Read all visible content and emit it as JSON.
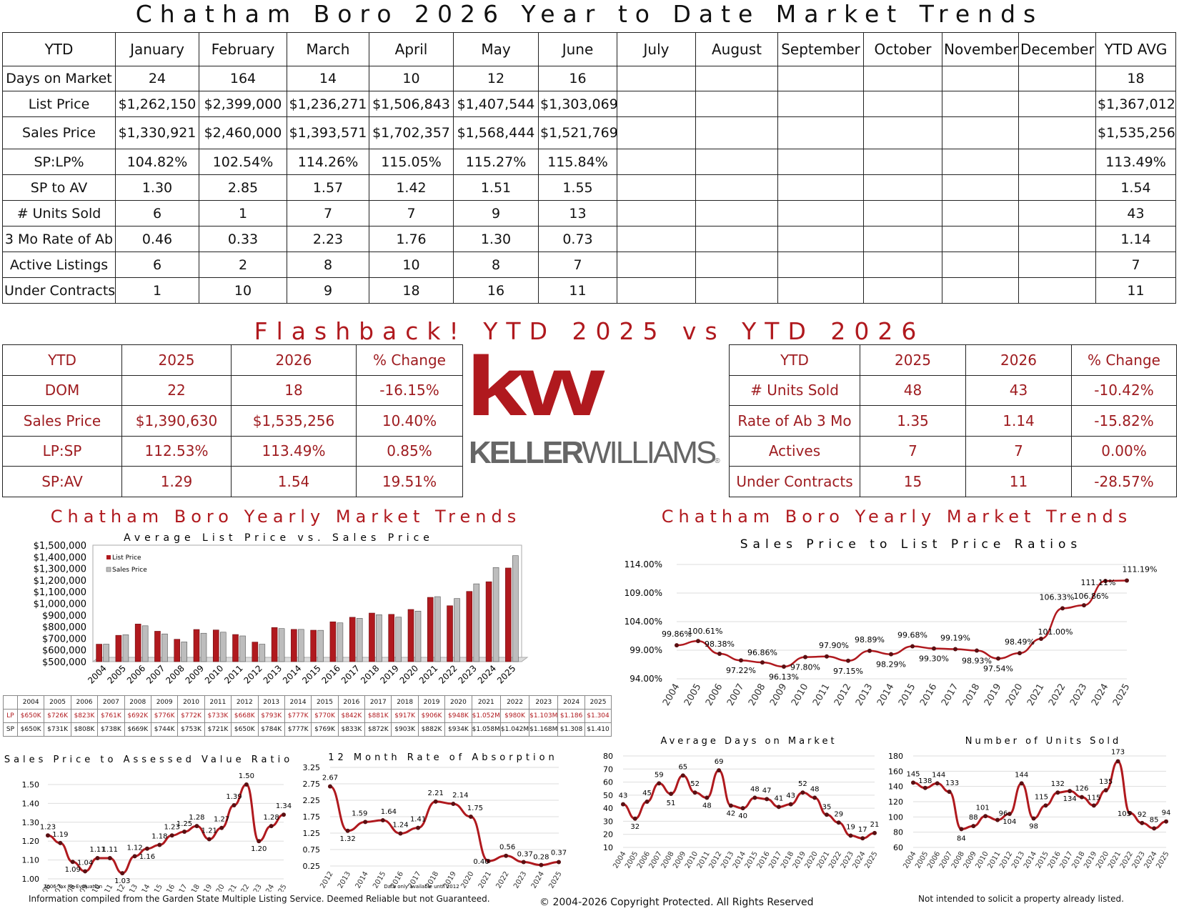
{
  "title": "Chatham Boro 2026 Year to Date Market Trends",
  "ytd_table": {
    "header": [
      "YTD",
      "January",
      "February",
      "March",
      "April",
      "May",
      "June",
      "July",
      "August",
      "September",
      "October",
      "November",
      "December",
      "YTD AVG"
    ],
    "rows": [
      {
        "label": "Days on Market",
        "values": [
          "24",
          "164",
          "14",
          "10",
          "12",
          "16",
          "",
          "",
          "",
          "",
          "",
          ""
        ],
        "avg": "18"
      },
      {
        "label": "List Price",
        "values": [
          "$1,262,150",
          "$2,399,000",
          "$1,236,271",
          "$1,506,843",
          "$1,407,544",
          "$1,303,069",
          "",
          "",
          "",
          "",
          "",
          ""
        ],
        "avg": "$1,367,012"
      },
      {
        "label": "Sales Price",
        "values": [
          "$1,330,921",
          "$2,460,000",
          "$1,393,571",
          "$1,702,357",
          "$1,568,444",
          "$1,521,769",
          "",
          "",
          "",
          "",
          "",
          ""
        ],
        "avg": "$1,535,256"
      },
      {
        "label": "SP:LP%",
        "values": [
          "104.82%",
          "102.54%",
          "114.26%",
          "115.05%",
          "115.27%",
          "115.84%",
          "",
          "",
          "",
          "",
          "",
          ""
        ],
        "avg": "113.49%"
      },
      {
        "label": "SP to AV",
        "values": [
          "1.30",
          "2.85",
          "1.57",
          "1.42",
          "1.51",
          "1.55",
          "",
          "",
          "",
          "",
          "",
          ""
        ],
        "avg": "1.54"
      },
      {
        "label": "# Units Sold",
        "values": [
          "6",
          "1",
          "7",
          "7",
          "9",
          "13",
          "",
          "",
          "",
          "",
          "",
          ""
        ],
        "avg": "43"
      },
      {
        "label": "3 Mo Rate of Ab",
        "values": [
          "0.46",
          "0.33",
          "2.23",
          "1.76",
          "1.30",
          "0.73",
          "",
          "",
          "",
          "",
          "",
          ""
        ],
        "avg": "1.14"
      },
      {
        "label": "Active Listings",
        "values": [
          "6",
          "2",
          "8",
          "10",
          "8",
          "7",
          "",
          "",
          "",
          "",
          "",
          ""
        ],
        "avg": "7"
      },
      {
        "label": "Under Contracts",
        "values": [
          "1",
          "10",
          "9",
          "18",
          "16",
          "11",
          "",
          "",
          "",
          "",
          "",
          ""
        ],
        "avg": "11"
      }
    ]
  },
  "flashback_title": "Flashback!  YTD 2025 vs YTD 2026",
  "compare_left": {
    "header": [
      "YTD",
      "2025",
      "2026",
      "% Change"
    ],
    "rows": [
      [
        "DOM",
        "22",
        "18",
        "-16.15%"
      ],
      [
        "Sales Price",
        "$1,390,630",
        "$1,535,256",
        "10.40%"
      ],
      [
        "LP:SP",
        "112.53%",
        "113.49%",
        "0.85%"
      ],
      [
        "SP:AV",
        "1.29",
        "1.54",
        "19.51%"
      ]
    ]
  },
  "compare_right": {
    "header": [
      "YTD",
      "2025",
      "2026",
      "% Change"
    ],
    "rows": [
      [
        "# Units Sold",
        "48",
        "43",
        "-10.42%"
      ],
      [
        "Rate of Ab 3 Mo",
        "1.35",
        "1.14",
        "-15.82%"
      ],
      [
        "Actives",
        "7",
        "7",
        "0.00%"
      ],
      [
        "Under Contracts",
        "15",
        "11",
        "-28.57%"
      ]
    ]
  },
  "logo": {
    "mark": "kw",
    "wordmark_bold": "KELLER",
    "wordmark_light": "WILLIAMS",
    "registered": "®"
  },
  "section_title_left": "Chatham Boro Yearly Market Trends",
  "section_title_right": "Chatham Boro Yearly Market Trends",
  "colors": {
    "accent": "#b0191e",
    "sales_bar": "#bdbdbd",
    "line": "#8b1a1f"
  },
  "price_grid": {
    "years": [
      "2004",
      "2005",
      "2006",
      "2007",
      "2008",
      "2009",
      "2010",
      "2011",
      "2012",
      "2013",
      "2014",
      "2015",
      "2016",
      "2017",
      "2018",
      "2019",
      "2020",
      "2021",
      "2022",
      "2023",
      "2024",
      "2025"
    ],
    "lp_label": "LP",
    "sp_label": "SP",
    "lp": [
      "$650K",
      "$726K",
      "$823K",
      "$761K",
      "$692K",
      "$776K",
      "$772K",
      "$733K",
      "$668K",
      "$793K",
      "$777K",
      "$770K",
      "$842K",
      "$881K",
      "$917K",
      "$906K",
      "$948K",
      "$1.052M",
      "$980K",
      "$1.103M",
      "$1.186",
      "$1.304"
    ],
    "sp": [
      "$650K",
      "$731K",
      "$808K",
      "$738K",
      "$669K",
      "$744K",
      "$753K",
      "$721K",
      "$650K",
      "$784K",
      "$777K",
      "$769K",
      "$833K",
      "$872K",
      "$903K",
      "$882K",
      "$934K",
      "$1.058M",
      "$1.042M",
      "$1.168M",
      "$1.308",
      "$1.410"
    ]
  },
  "chart_data": [
    {
      "type": "bar",
      "title": "Average List Price vs. Sales Price",
      "categories": [
        "2004",
        "2005",
        "2006",
        "2007",
        "2008",
        "2009",
        "2010",
        "2011",
        "2012",
        "2013",
        "2014",
        "2015",
        "2016",
        "2017",
        "2018",
        "2019",
        "2020",
        "2021",
        "2022",
        "2023",
        "2024",
        "2025"
      ],
      "series": [
        {
          "name": "List Price",
          "values": [
            650000,
            726000,
            823000,
            761000,
            692000,
            776000,
            772000,
            733000,
            668000,
            793000,
            777000,
            770000,
            842000,
            881000,
            917000,
            906000,
            948000,
            1052000,
            980000,
            1103000,
            1186000,
            1304000
          ]
        },
        {
          "name": "Sales Price",
          "values": [
            650000,
            731000,
            808000,
            738000,
            669000,
            744000,
            753000,
            721000,
            650000,
            784000,
            777000,
            769000,
            833000,
            872000,
            903000,
            882000,
            934000,
            1058000,
            1042000,
            1168000,
            1308000,
            1410000
          ]
        }
      ],
      "yticks": [
        "$1,500,000",
        "$1,400,000",
        "$1,300,000",
        "$1,200,000",
        "$1,100,000",
        "$1,000,000",
        "$900,000",
        "$800,000",
        "$700,000",
        "$600,000",
        "$500,000"
      ],
      "ylim": [
        500000,
        1500000
      ],
      "legend": "top-left"
    },
    {
      "type": "line",
      "title": "Sales Price to List Price Ratios",
      "x": [
        "2004",
        "2005",
        "2006",
        "2007",
        "2008",
        "2009",
        "2010",
        "2011",
        "2012",
        "2013",
        "2014",
        "2015",
        "2016",
        "2017",
        "2018",
        "2019",
        "2020",
        "2021",
        "2022",
        "2023",
        "2024",
        "2025"
      ],
      "values": [
        99.86,
        100.61,
        98.38,
        97.22,
        96.86,
        96.13,
        97.8,
        97.9,
        97.15,
        98.89,
        98.29,
        99.68,
        99.3,
        99.19,
        98.93,
        97.54,
        98.49,
        101.0,
        106.33,
        106.86,
        111.11,
        111.19
      ],
      "labels": [
        "99.86%",
        "100.61%",
        "98.38%",
        "97.22%",
        "96.86%",
        "96.13%",
        "97.80%",
        "97.90%",
        "97.15%",
        "98.89%",
        "98.29%",
        "99.68%",
        "99.30%",
        "99.19%",
        "98.93%",
        "97.54%",
        "98.49%",
        "101.00%",
        "106.33%",
        "106.86%",
        "111.11%",
        "111.19%"
      ],
      "yticks": [
        "114.00%",
        "109.00%",
        "104.00%",
        "99.00%",
        "94.00%"
      ],
      "ylim": [
        94,
        114
      ]
    },
    {
      "type": "line",
      "title": "Sales Price to Assessed Value Ratio",
      "x": [
        "2006",
        "2007",
        "2008",
        "2009",
        "2010",
        "2011",
        "2012",
        "2013",
        "2014",
        "2015",
        "2016",
        "2017",
        "2018",
        "2019",
        "2020",
        "2021",
        "2022",
        "2023",
        "2024",
        "2025"
      ],
      "values": [
        1.23,
        1.19,
        1.09,
        1.04,
        1.11,
        1.11,
        1.03,
        1.12,
        1.16,
        1.18,
        1.23,
        1.25,
        1.28,
        1.21,
        1.27,
        1.39,
        1.5,
        1.2,
        1.28,
        1.34
      ],
      "labels": [
        "1.23",
        "1.19",
        "1.09",
        "1.04",
        "1.11",
        "1.11",
        "1.03",
        "1.12",
        "1.16",
        "1.18",
        "1.23",
        "1.25",
        "1.28",
        "1.21",
        "1.27",
        "1.39",
        "1.50",
        "1.20",
        "1.28",
        "1.34"
      ],
      "yticks": [
        "1.50",
        "1.40",
        "1.30",
        "1.20",
        "1.10",
        "1.00"
      ],
      "ylim": [
        1.0,
        1.5
      ],
      "note": "2006 Tax Re-Evaluation"
    },
    {
      "type": "line",
      "title": "12 Month Rate of Absorption",
      "x": [
        "2012",
        "2013",
        "2014",
        "2015",
        "2016",
        "2017",
        "2018",
        "2019",
        "2020",
        "2021",
        "2022",
        "2023",
        "2024",
        "2025"
      ],
      "values": [
        2.67,
        1.32,
        1.59,
        1.64,
        1.24,
        1.41,
        2.21,
        2.14,
        1.75,
        0.4,
        0.56,
        0.37,
        0.28,
        0.37
      ],
      "labels": [
        "2.67",
        "1.32",
        "1.59",
        "1.64",
        "1.24",
        "1.41",
        "2.21",
        "2.14",
        "1.75",
        "0.40",
        "0.56",
        "0.37",
        "0.28",
        "0.37"
      ],
      "yticks": [
        "3.25",
        "2.75",
        "2.25",
        "1.75",
        "1.25",
        "0.75",
        "0.25"
      ],
      "ylim": [
        0.25,
        3.25
      ],
      "note": "Data only available until 2012"
    },
    {
      "type": "line",
      "title": "Average Days on Market",
      "x": [
        "2004",
        "2005",
        "2006",
        "2007",
        "2008",
        "2009",
        "2010",
        "2011",
        "2012",
        "2013",
        "2014",
        "2015",
        "2016",
        "2017",
        "2018",
        "2019",
        "2020",
        "2021",
        "2022",
        "2023",
        "2024",
        "2025"
      ],
      "values": [
        43,
        32,
        45,
        59,
        51,
        65,
        52,
        48,
        69,
        42,
        40,
        48,
        47,
        41,
        43,
        52,
        48,
        35,
        29,
        19,
        17,
        21
      ],
      "labels": [
        "43",
        "32",
        "45",
        "59",
        "51",
        "65",
        "52",
        "48",
        "69",
        "42",
        "40",
        "48",
        "47",
        "41",
        "43",
        "52",
        "48",
        "35",
        "29",
        "19",
        "17",
        "21"
      ],
      "yticks": [
        "80",
        "70",
        "60",
        "50",
        "40",
        "30",
        "20",
        "10"
      ],
      "ylim": [
        10,
        80
      ]
    },
    {
      "type": "line",
      "title": "Number of Units Sold",
      "x": [
        "2004",
        "2005",
        "2006",
        "2007",
        "2008",
        "2009",
        "2010",
        "2011",
        "2012",
        "2013",
        "2014",
        "2015",
        "2016",
        "2017",
        "2018",
        "2019",
        "2020",
        "2021",
        "2022",
        "2023",
        "2024",
        "2025"
      ],
      "values": [
        145,
        138,
        144,
        133,
        84,
        88,
        101,
        96,
        104,
        144,
        98,
        115,
        132,
        134,
        126,
        115,
        135,
        173,
        105,
        92,
        85,
        94
      ],
      "labels": [
        "145",
        "138",
        "144",
        "133",
        "84",
        "88",
        "101",
        "96",
        "104",
        "144",
        "98",
        "115",
        "132",
        "134",
        "126",
        "115",
        "135",
        "173",
        "105",
        "92",
        "85",
        "94"
      ],
      "yticks": [
        "180",
        "160",
        "140",
        "120",
        "100",
        "80",
        "60"
      ],
      "ylim": [
        60,
        180
      ]
    }
  ],
  "footer": {
    "left": "Information compiled from the Garden State Multiple Listing Service.  Deemed Reliable but not Guaranteed.",
    "center": "© 2004-2026 Copyright Protected.  All Rights Reserved",
    "right": "Not intended to solicit a property already listed."
  }
}
